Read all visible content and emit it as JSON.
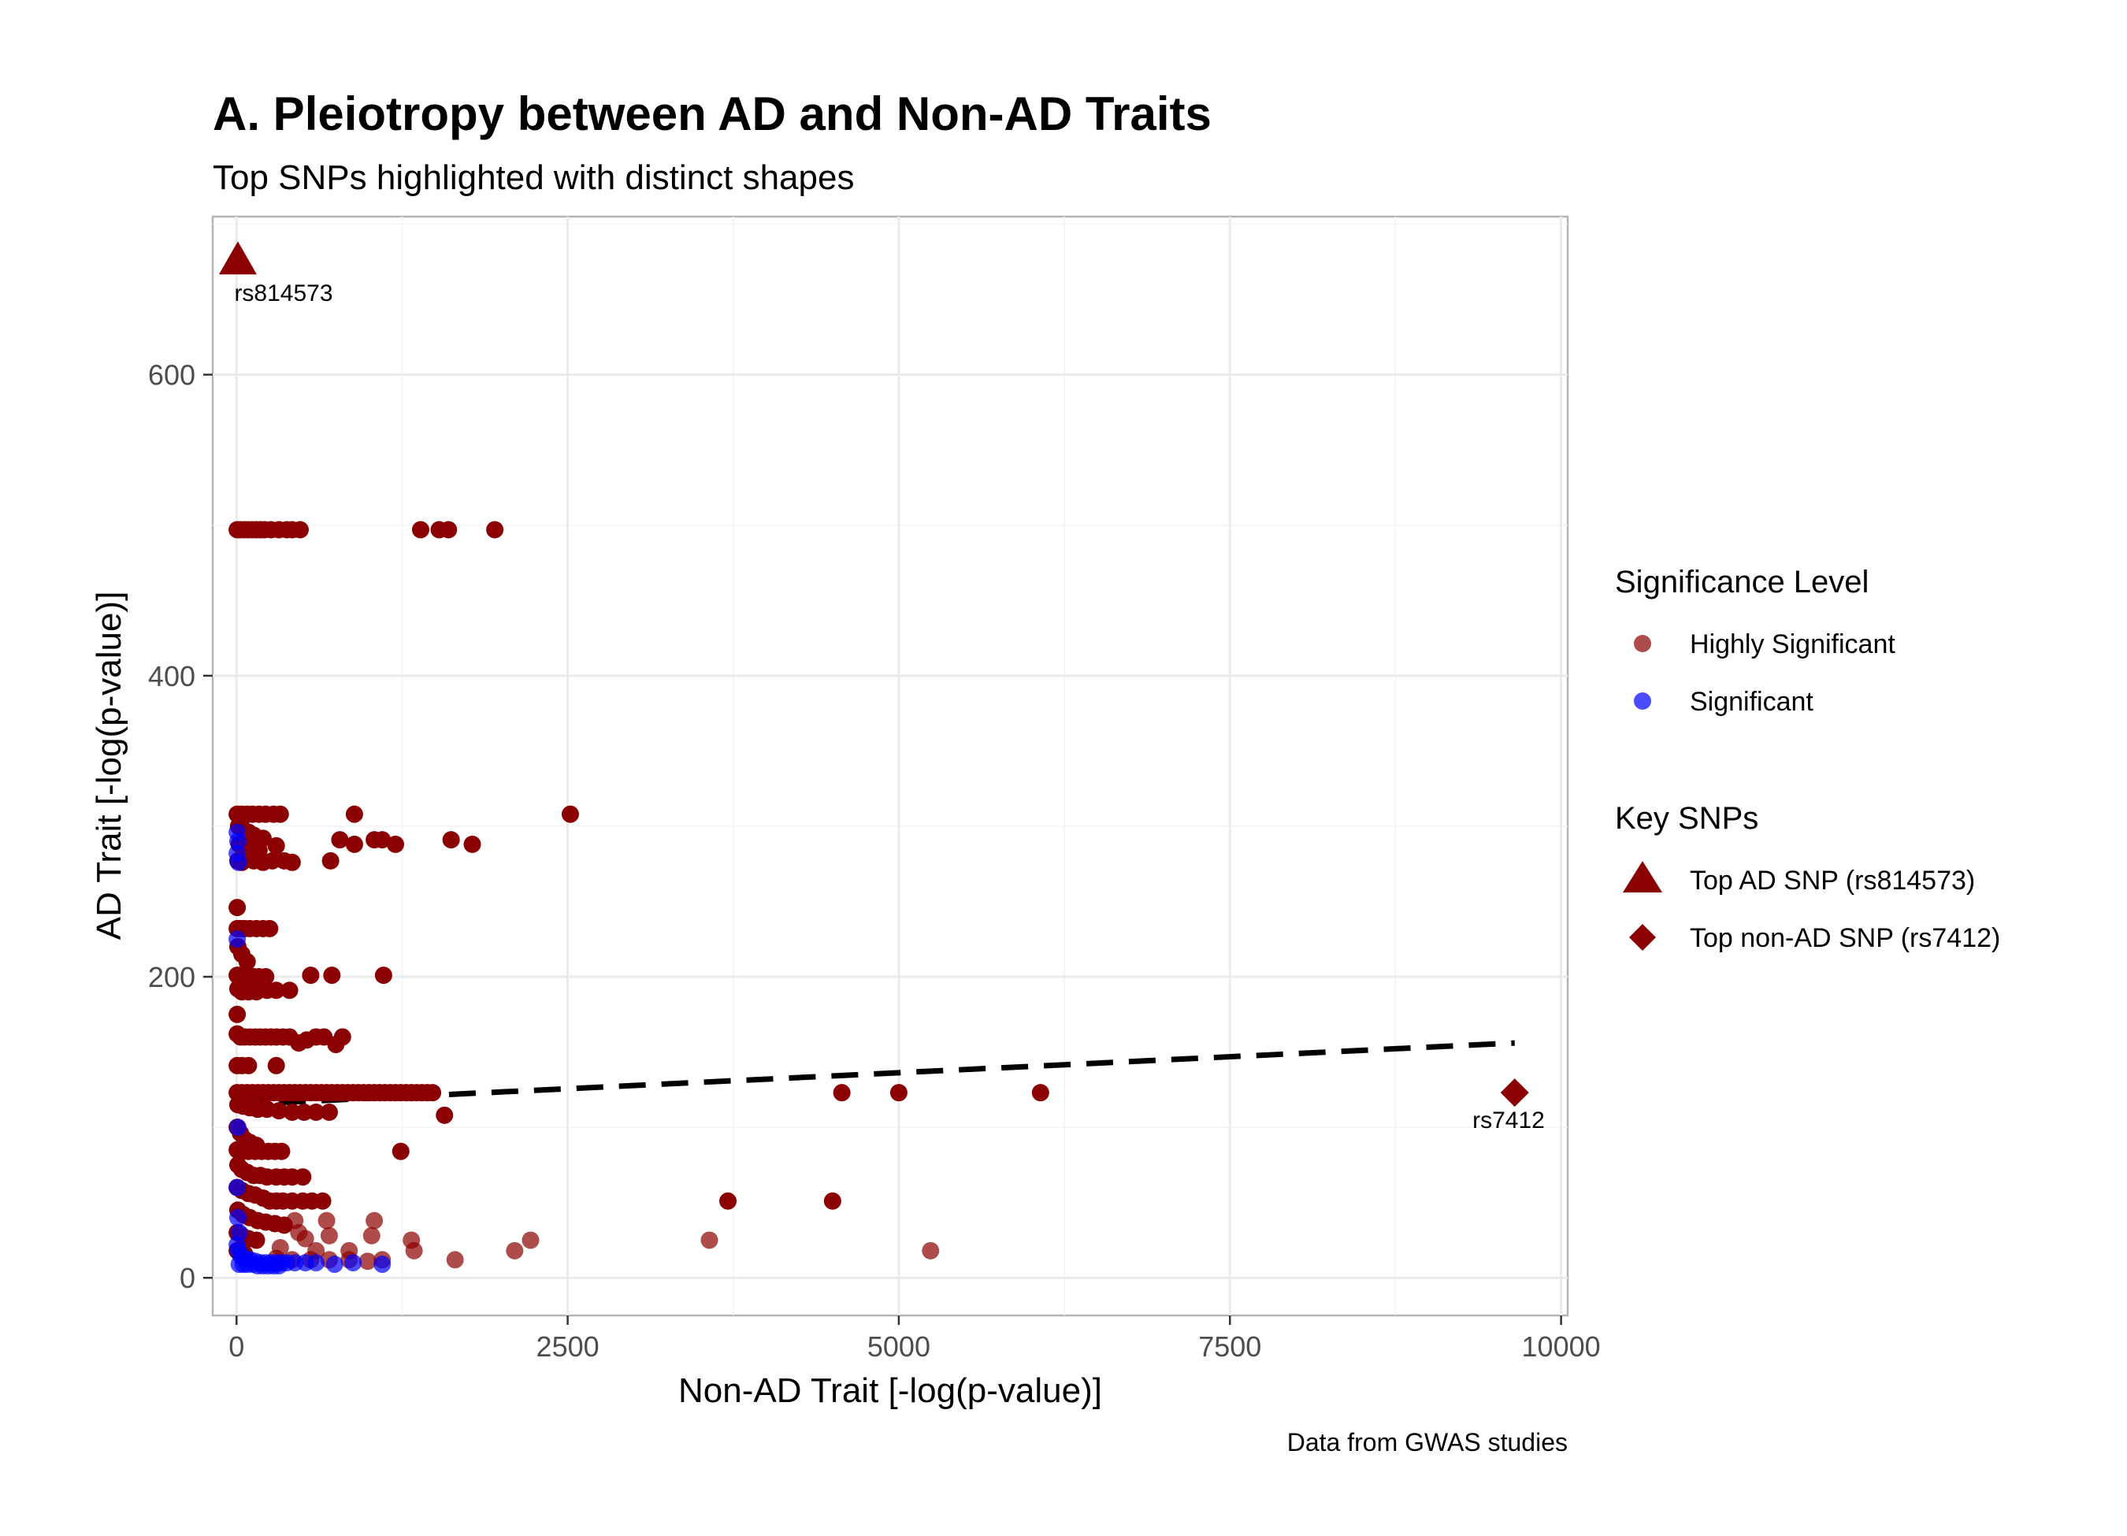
{
  "chart_data": {
    "type": "scatter",
    "title": "A. Pleiotropy between AD and Non-AD Traits",
    "subtitle": "Top SNPs highlighted with distinct shapes",
    "xlabel": "Non-AD Trait [-log(p-value)]",
    "ylabel": "AD Trait [-log(p-value)]",
    "caption": "Data from GWAS studies",
    "xlim": [
      -180,
      10050
    ],
    "ylim": [
      -25,
      705
    ],
    "x_ticks": [
      0,
      2500,
      5000,
      7500,
      10000
    ],
    "x_tick_labels": [
      "0",
      "2500",
      "5000",
      "7500",
      "10000"
    ],
    "y_ticks": [
      0,
      200,
      400,
      600
    ],
    "y_tick_labels": [
      "0",
      "200",
      "400",
      "600"
    ],
    "grid": true,
    "legend_position": "right",
    "colors": {
      "highly_significant": "#8b0000",
      "significant": "#0000ff",
      "key_snp": "#8b0000",
      "trend": "#000000"
    },
    "legends": [
      {
        "title": "Significance Level",
        "items": [
          {
            "label": "Highly Significant",
            "shape": "circle",
            "color": "#8b0000"
          },
          {
            "label": "Significant",
            "shape": "circle",
            "color": "#0000ff"
          }
        ]
      },
      {
        "title": "Key SNPs",
        "items": [
          {
            "label": "Top AD SNP (rs814573)",
            "shape": "triangle",
            "color": "#8b0000"
          },
          {
            "label": "Top non-AD SNP (rs7412)",
            "shape": "diamond",
            "color": "#8b0000"
          }
        ]
      }
    ],
    "key_snps": [
      {
        "label": "rs814573",
        "x": 10,
        "y": 675,
        "shape": "triangle"
      },
      {
        "label": "rs7412",
        "x": 9650,
        "y": 123,
        "shape": "diamond"
      }
    ],
    "trend_line": {
      "x": [
        0,
        9650
      ],
      "y": [
        115,
        156
      ],
      "style": "dashed"
    },
    "series": [
      {
        "name": "Highly Significant",
        "points": [
          [
            5,
            497
          ],
          [
            30,
            497
          ],
          [
            60,
            497
          ],
          [
            90,
            497
          ],
          [
            120,
            497
          ],
          [
            150,
            497
          ],
          [
            180,
            497
          ],
          [
            210,
            497
          ],
          [
            260,
            497
          ],
          [
            320,
            497
          ],
          [
            380,
            497
          ],
          [
            420,
            497
          ],
          [
            480,
            497
          ],
          [
            1390,
            497
          ],
          [
            1530,
            497
          ],
          [
            1600,
            497
          ],
          [
            1950,
            497
          ],
          [
            5,
            308
          ],
          [
            40,
            308
          ],
          [
            80,
            308
          ],
          [
            120,
            308
          ],
          [
            170,
            308
          ],
          [
            220,
            308
          ],
          [
            280,
            308
          ],
          [
            330,
            308
          ],
          [
            890,
            308
          ],
          [
            2520,
            308
          ],
          [
            15,
            300
          ],
          [
            50,
            298
          ],
          [
            90,
            296
          ],
          [
            130,
            294
          ],
          [
            200,
            292
          ],
          [
            780,
            291
          ],
          [
            1040,
            291
          ],
          [
            1100,
            291
          ],
          [
            1620,
            291
          ],
          [
            20,
            288
          ],
          [
            60,
            286
          ],
          [
            110,
            285
          ],
          [
            170,
            284
          ],
          [
            300,
            287
          ],
          [
            890,
            288
          ],
          [
            1200,
            288
          ],
          [
            1780,
            288
          ],
          [
            10,
            277
          ],
          [
            40,
            276
          ],
          [
            80,
            278
          ],
          [
            130,
            277
          ],
          [
            200,
            276
          ],
          [
            270,
            277
          ],
          [
            360,
            277
          ],
          [
            420,
            276
          ],
          [
            710,
            277
          ],
          [
            5,
            246
          ],
          [
            5,
            232
          ],
          [
            30,
            232
          ],
          [
            60,
            232
          ],
          [
            100,
            232
          ],
          [
            150,
            232
          ],
          [
            200,
            232
          ],
          [
            250,
            232
          ],
          [
            10,
            220
          ],
          [
            40,
            215
          ],
          [
            80,
            210
          ],
          [
            5,
            201
          ],
          [
            30,
            201
          ],
          [
            60,
            200
          ],
          [
            90,
            200
          ],
          [
            130,
            200
          ],
          [
            170,
            200
          ],
          [
            220,
            200
          ],
          [
            560,
            201
          ],
          [
            720,
            201
          ],
          [
            1110,
            201
          ],
          [
            10,
            192
          ],
          [
            40,
            190
          ],
          [
            90,
            190
          ],
          [
            150,
            190
          ],
          [
            230,
            191
          ],
          [
            300,
            191
          ],
          [
            400,
            191
          ],
          [
            5,
            175
          ],
          [
            5,
            162
          ],
          [
            30,
            160
          ],
          [
            60,
            160
          ],
          [
            100,
            160
          ],
          [
            140,
            160
          ],
          [
            180,
            160
          ],
          [
            220,
            160
          ],
          [
            260,
            160
          ],
          [
            300,
            160
          ],
          [
            350,
            160
          ],
          [
            400,
            160
          ],
          [
            470,
            156
          ],
          [
            530,
            158
          ],
          [
            600,
            160
          ],
          [
            660,
            160
          ],
          [
            750,
            155
          ],
          [
            800,
            160
          ],
          [
            5,
            141
          ],
          [
            40,
            141
          ],
          [
            90,
            141
          ],
          [
            300,
            141
          ],
          [
            5,
            123
          ],
          [
            40,
            123
          ],
          [
            80,
            123
          ],
          [
            120,
            123
          ],
          [
            160,
            123
          ],
          [
            200,
            123
          ],
          [
            240,
            123
          ],
          [
            280,
            123
          ],
          [
            320,
            123
          ],
          [
            360,
            123
          ],
          [
            400,
            123
          ],
          [
            440,
            123
          ],
          [
            480,
            123
          ],
          [
            520,
            123
          ],
          [
            560,
            123
          ],
          [
            600,
            123
          ],
          [
            640,
            123
          ],
          [
            680,
            123
          ],
          [
            720,
            123
          ],
          [
            760,
            123
          ],
          [
            800,
            123
          ],
          [
            840,
            123
          ],
          [
            880,
            123
          ],
          [
            920,
            123
          ],
          [
            960,
            123
          ],
          [
            1000,
            123
          ],
          [
            1040,
            123
          ],
          [
            1080,
            123
          ],
          [
            1120,
            123
          ],
          [
            1160,
            123
          ],
          [
            1200,
            123
          ],
          [
            1240,
            123
          ],
          [
            1280,
            123
          ],
          [
            1320,
            123
          ],
          [
            1360,
            123
          ],
          [
            1400,
            123
          ],
          [
            1440,
            123
          ],
          [
            1480,
            123
          ],
          [
            4570,
            123
          ],
          [
            5000,
            123
          ],
          [
            6070,
            123
          ],
          [
            10,
            115
          ],
          [
            50,
            114
          ],
          [
            100,
            113
          ],
          [
            160,
            112
          ],
          [
            230,
            112
          ],
          [
            320,
            111
          ],
          [
            420,
            110
          ],
          [
            510,
            110
          ],
          [
            600,
            110
          ],
          [
            700,
            110
          ],
          [
            1570,
            108
          ],
          [
            5,
            100
          ],
          [
            30,
            96
          ],
          [
            60,
            92
          ],
          [
            100,
            90
          ],
          [
            150,
            88
          ],
          [
            5,
            85
          ],
          [
            40,
            84
          ],
          [
            90,
            84
          ],
          [
            140,
            84
          ],
          [
            190,
            84
          ],
          [
            240,
            84
          ],
          [
            290,
            84
          ],
          [
            340,
            84
          ],
          [
            1240,
            84
          ],
          [
            10,
            75
          ],
          [
            40,
            72
          ],
          [
            80,
            70
          ],
          [
            130,
            68
          ],
          [
            180,
            68
          ],
          [
            230,
            67
          ],
          [
            300,
            67
          ],
          [
            360,
            67
          ],
          [
            420,
            67
          ],
          [
            500,
            67
          ],
          [
            5,
            60
          ],
          [
            40,
            58
          ],
          [
            90,
            56
          ],
          [
            140,
            55
          ],
          [
            200,
            53
          ],
          [
            250,
            51
          ],
          [
            300,
            51
          ],
          [
            350,
            51
          ],
          [
            420,
            51
          ],
          [
            500,
            51
          ],
          [
            570,
            51
          ],
          [
            650,
            51
          ],
          [
            3710,
            51
          ],
          [
            4500,
            51
          ],
          [
            10,
            45
          ],
          [
            50,
            42
          ],
          [
            100,
            40
          ],
          [
            160,
            38
          ],
          [
            220,
            37
          ],
          [
            290,
            36
          ],
          [
            360,
            35
          ],
          [
            5,
            30
          ],
          [
            40,
            28
          ],
          [
            90,
            26
          ],
          [
            150,
            25
          ],
          [
            5,
            18
          ],
          [
            60,
            16
          ]
        ]
      },
      {
        "name": "Highly Significant (faded)",
        "points": [
          [
            440,
            38
          ],
          [
            680,
            38
          ],
          [
            1040,
            38
          ],
          [
            470,
            30
          ],
          [
            520,
            26
          ],
          [
            700,
            28
          ],
          [
            1020,
            28
          ],
          [
            1320,
            25
          ],
          [
            2220,
            25
          ],
          [
            3570,
            25
          ],
          [
            330,
            20
          ],
          [
            600,
            18
          ],
          [
            850,
            18
          ],
          [
            1340,
            18
          ],
          [
            2100,
            18
          ],
          [
            5240,
            18
          ],
          [
            300,
            13
          ],
          [
            420,
            12
          ],
          [
            560,
            12
          ],
          [
            700,
            12
          ],
          [
            850,
            12
          ],
          [
            990,
            11
          ],
          [
            1100,
            12
          ],
          [
            1650,
            12
          ]
        ]
      },
      {
        "name": "Significant",
        "points": [
          [
            5,
            296
          ],
          [
            10,
            290
          ],
          [
            5,
            282
          ],
          [
            15,
            276
          ],
          [
            5,
            225
          ],
          [
            10,
            100
          ],
          [
            5,
            60
          ],
          [
            10,
            40
          ],
          [
            20,
            30
          ],
          [
            5,
            22
          ],
          [
            15,
            18
          ],
          [
            30,
            15
          ],
          [
            60,
            13
          ],
          [
            100,
            12
          ],
          [
            140,
            11
          ],
          [
            180,
            10
          ],
          [
            220,
            10
          ],
          [
            260,
            10
          ],
          [
            300,
            10
          ],
          [
            340,
            10
          ],
          [
            380,
            10
          ],
          [
            440,
            10
          ],
          [
            520,
            10
          ],
          [
            600,
            10
          ],
          [
            740,
            9
          ],
          [
            880,
            10
          ],
          [
            1100,
            9
          ],
          [
            20,
            9
          ],
          [
            50,
            9
          ],
          [
            80,
            9
          ],
          [
            120,
            9
          ],
          [
            160,
            8
          ],
          [
            200,
            8
          ],
          [
            240,
            8
          ],
          [
            280,
            8
          ],
          [
            320,
            8
          ]
        ]
      }
    ]
  },
  "labels": {
    "title": "A. Pleiotropy between AD and Non-AD Traits",
    "subtitle": "Top SNPs highlighted with distinct shapes",
    "xlabel": "Non-AD Trait [-log(p-value)]",
    "ylabel": "AD Trait [-log(p-value)]",
    "caption": "Data from GWAS studies",
    "legend1_title": "Significance Level",
    "legend1_item1": "Highly Significant",
    "legend1_item2": "Significant",
    "legend2_title": "Key SNPs",
    "legend2_item1": "Top AD SNP (rs814573)",
    "legend2_item2": "Top non-AD SNP (rs7412)",
    "ann_triangle": "rs814573",
    "ann_diamond": "rs7412"
  }
}
